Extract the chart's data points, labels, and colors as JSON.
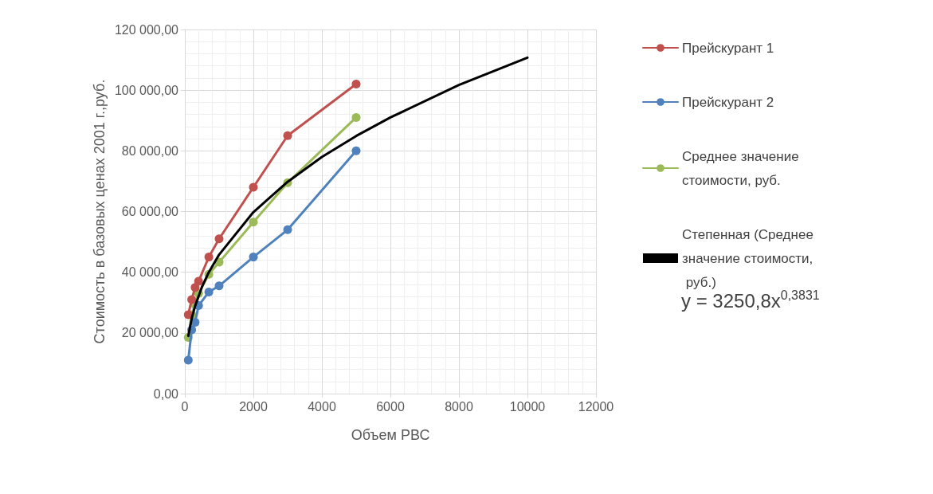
{
  "chart_data": {
    "type": "line",
    "xlabel": "Объем РВС",
    "ylabel": "Стоимость в базовых ценах 2001 г.,руб.",
    "xlim": [
      0,
      12000
    ],
    "xticks": [
      0,
      2000,
      4000,
      6000,
      8000,
      10000,
      12000
    ],
    "ylim": [
      0,
      120000
    ],
    "yticks": [
      {
        "value": 0,
        "label": "0,00"
      },
      {
        "value": 20000,
        "label": "20 000,00"
      },
      {
        "value": 40000,
        "label": "40 000,00"
      },
      {
        "value": 60000,
        "label": "60 000,00"
      },
      {
        "value": 80000,
        "label": "80 000,00"
      },
      {
        "value": 100000,
        "label": "100 000,00"
      },
      {
        "value": 120000,
        "label": "120 000,00"
      }
    ],
    "grid": true,
    "legend": "right",
    "marker": "circle",
    "line_style": "solid",
    "series": [
      {
        "name": "Прейскурант 1",
        "color": "#c0504d",
        "x": [
          100,
          200,
          300,
          400,
          700,
          1000,
          2000,
          3000,
          5000
        ],
        "values": [
          26000,
          31000,
          35000,
          37000,
          45000,
          51000,
          68000,
          85000,
          102000
        ]
      },
      {
        "name": "Прейскурант 2",
        "color": "#4f81bd",
        "x": [
          100,
          200,
          300,
          400,
          700,
          1000,
          2000,
          3000,
          5000
        ],
        "values": [
          11000,
          21000,
          23500,
          29000,
          33500,
          35500,
          45000,
          54000,
          80000
        ]
      },
      {
        "name": "Среднее значение стоимости, руб.",
        "color": "#9bbb59",
        "x": [
          100,
          200,
          300,
          400,
          700,
          1000,
          2000,
          3000,
          5000
        ],
        "values": [
          18500,
          26000,
          29300,
          33000,
          39300,
          43300,
          56500,
          69500,
          91000
        ]
      },
      {
        "name": "Степенная (Среднее значение стоимости, руб.)",
        "color": "#000000",
        "marker": "none",
        "x": [
          100,
          200,
          300,
          500,
          700,
          1000,
          2000,
          3000,
          4000,
          5000,
          6000,
          8000,
          10000
        ],
        "values": [
          19000,
          24700,
          28900,
          35200,
          40000,
          45800,
          59800,
          69800,
          78000,
          84900,
          91000,
          101700,
          110700
        ]
      }
    ],
    "annotations": [
      "y = 3250,8x$^{0,3831}$"
    ]
  }
}
